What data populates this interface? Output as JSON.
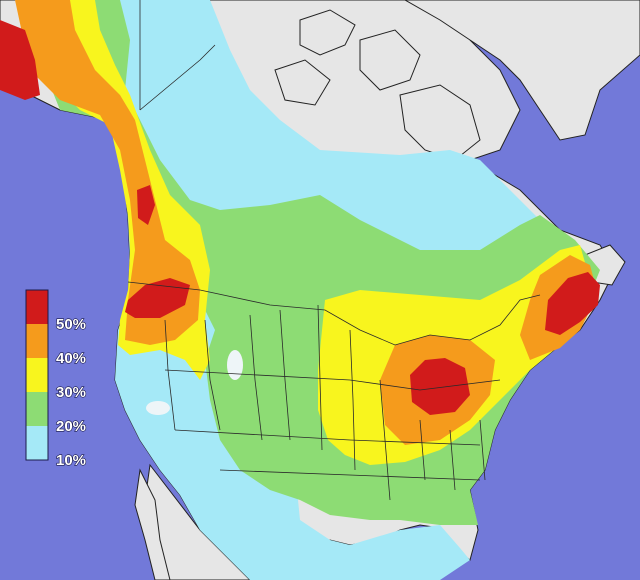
{
  "map": {
    "ocean_color": "#7279d9",
    "land_color": "#e6e6e6",
    "band_colors": {
      "10": "#a5e9f7",
      "20": "#8ddc74",
      "30": "#f8f51e",
      "40": "#f59b1c",
      "50": "#d11b1b"
    },
    "legend": {
      "items": [
        {
          "label": "50%",
          "color": "#d11b1b"
        },
        {
          "label": "40%",
          "color": "#f59b1c"
        },
        {
          "label": "30%",
          "color": "#f8f51e"
        },
        {
          "label": "20%",
          "color": "#8ddc74"
        },
        {
          "label": "10%",
          "color": "#a5e9f7"
        }
      ]
    }
  }
}
